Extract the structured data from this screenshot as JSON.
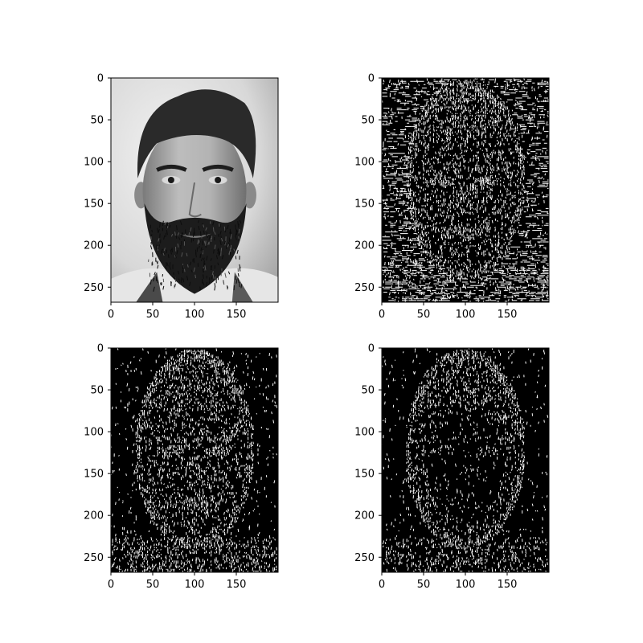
{
  "figure": {
    "image_shape": {
      "width": 200,
      "height": 268
    },
    "x_ticks": [
      0,
      50,
      100,
      150
    ],
    "y_ticks": [
      0,
      50,
      100,
      150,
      200,
      250
    ],
    "x_tick_labels": [
      "0",
      "50",
      "100",
      "150"
    ],
    "y_tick_labels": [
      "0",
      "50",
      "100",
      "150",
      "200",
      "250"
    ],
    "panels": [
      {
        "name": "grayscale-photo",
        "kind": "photo",
        "content": "grayscale portrait of a bearded man"
      },
      {
        "name": "edge-map-1",
        "kind": "edges",
        "density": 0.45
      },
      {
        "name": "edge-map-2",
        "kind": "edges",
        "density": 0.38
      },
      {
        "name": "edge-map-3",
        "kind": "edges",
        "density": 0.3
      }
    ],
    "colors": {
      "background": "#ffffff",
      "edge_on": "#ffffff",
      "edge_off": "#000000",
      "axis": "#000000"
    }
  }
}
